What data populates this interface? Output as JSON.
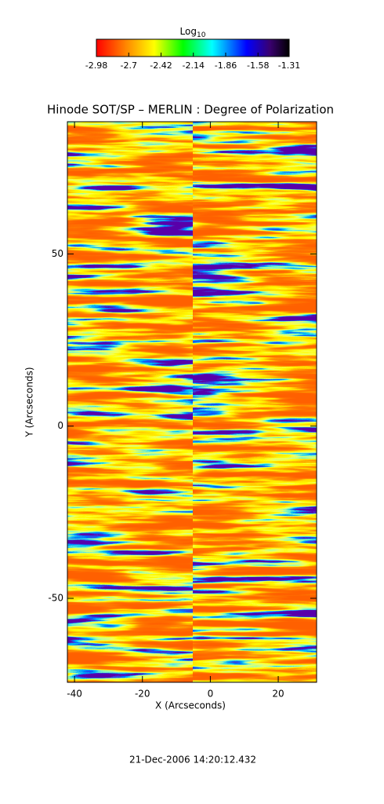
{
  "chart_data": {
    "type": "heatmap",
    "title": "Hinode SOT/SP – MERLIN : Degree of Polarization",
    "xlabel": "X (Arcseconds)",
    "ylabel": "Y (Arcseconds)",
    "xlim": [
      -42.1,
      31.3
    ],
    "ylim": [
      -74.4,
      88.4
    ],
    "xticks": [
      -40,
      -20,
      0,
      20
    ],
    "yticks": [
      -50,
      0,
      50
    ],
    "colorbar": {
      "label": "Log",
      "label_subscript": "10",
      "range": [
        -2.98,
        -1.31
      ],
      "ticks": [
        -2.98,
        -2.7,
        -2.42,
        -2.14,
        -1.86,
        -1.58,
        -1.31
      ]
    },
    "timestamp": "21-Dec-2006 14:20:12.432"
  }
}
